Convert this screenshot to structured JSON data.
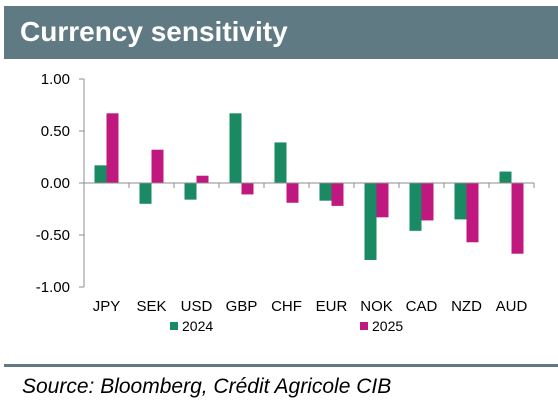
{
  "title": "Currency sensitivity",
  "source": "Source: Bloomberg, Crédit Agricole CIB",
  "colors": {
    "header": "#607a84",
    "series_2024": "#1a8a63",
    "series_2025": "#c0187f"
  },
  "chart_data": {
    "type": "bar",
    "categories": [
      "JPY",
      "SEK",
      "USD",
      "GBP",
      "CHF",
      "EUR",
      "NOK",
      "CAD",
      "NZD",
      "AUD"
    ],
    "series": [
      {
        "name": "2024",
        "values": [
          0.17,
          -0.2,
          -0.16,
          0.67,
          0.39,
          -0.17,
          -0.74,
          -0.46,
          -0.35,
          0.11
        ]
      },
      {
        "name": "2025",
        "values": [
          0.67,
          0.32,
          0.07,
          -0.11,
          -0.19,
          -0.22,
          -0.33,
          -0.36,
          -0.57,
          -0.68
        ]
      }
    ],
    "yticks": [
      "1.00",
      "0.50",
      "0.00",
      "-0.50",
      "-1.00"
    ],
    "ylim": [
      -1.0,
      1.0
    ],
    "grid": false,
    "legend": "bottom"
  }
}
